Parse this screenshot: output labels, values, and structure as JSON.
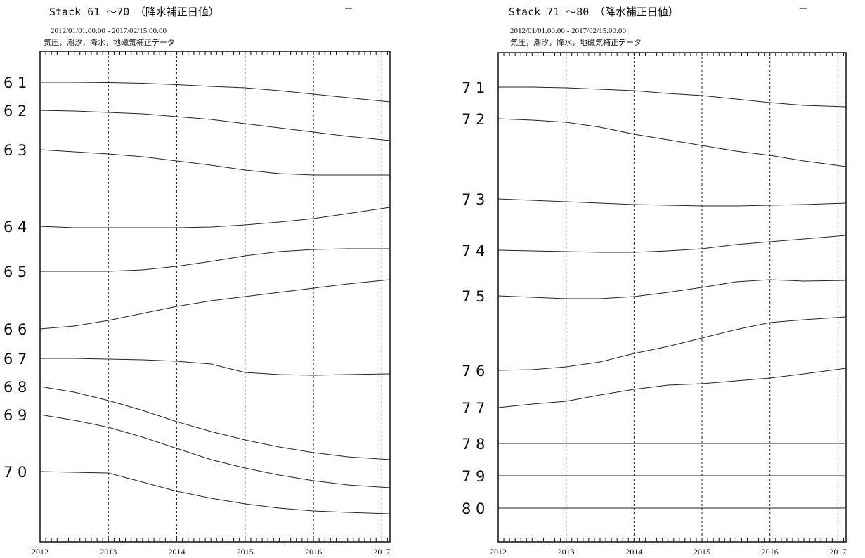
{
  "chart_data": [
    {
      "type": "line",
      "title": "Stack 61 ～70　（降水補正日値）",
      "period": "2012/01/01.00:00 - 2017/02/15.00:00",
      "note": "気圧，潮汐，降水，地磁気補正データ",
      "corner_mark": "ー",
      "x_tick_labels": [
        "2012",
        "2013",
        "2014",
        "2015",
        "2016",
        "2017"
      ],
      "x_ticks": [
        2012,
        2013,
        2014,
        2015,
        2016,
        2017
      ],
      "xlim": [
        2012.0,
        2017.12
      ],
      "grid": "dashed vertical at year boundaries",
      "series_x": [
        2012.0,
        2012.5,
        2013.0,
        2013.5,
        2014.0,
        2014.5,
        2015.0,
        2015.5,
        2016.0,
        2016.5,
        2017.12
      ],
      "series": [
        {
          "name": "6 1",
          "offset": [
            0,
            0,
            0.5,
            1.5,
            3.5,
            6,
            8,
            12,
            17,
            22,
            28
          ]
        },
        {
          "name": "6 2",
          "offset": [
            0,
            1,
            3,
            5,
            9,
            13,
            19,
            25,
            31,
            37,
            43
          ]
        },
        {
          "name": "6 3",
          "offset": [
            0,
            3,
            6,
            10,
            16,
            22,
            29,
            34,
            36,
            36,
            36
          ]
        },
        {
          "name": "6 4",
          "offset": [
            0,
            2,
            2,
            2,
            2,
            1,
            -2,
            -6,
            -11,
            -18,
            -27
          ]
        },
        {
          "name": "6 5",
          "offset": [
            0,
            0,
            0,
            -2,
            -7,
            -14,
            -22,
            -28,
            -31,
            -32,
            -32
          ]
        },
        {
          "name": "6 6",
          "offset": [
            0,
            -4,
            -12,
            -22,
            -32,
            -40,
            -46,
            -52,
            -58,
            -64,
            -70
          ]
        },
        {
          "name": "6 7",
          "offset": [
            0,
            0,
            1,
            2,
            4,
            8,
            20,
            23,
            24,
            23,
            22
          ]
        },
        {
          "name": "6 8",
          "offset": [
            0,
            8,
            20,
            34,
            50,
            64,
            76,
            86,
            94,
            100,
            104
          ]
        },
        {
          "name": "6 9",
          "offset": [
            0,
            8,
            18,
            32,
            48,
            64,
            76,
            86,
            94,
            100,
            104
          ]
        },
        {
          "name": "7 0",
          "offset": [
            0,
            1,
            2,
            15,
            28,
            38,
            46,
            52,
            56,
            58,
            60
          ]
        }
      ]
    },
    {
      "type": "line",
      "title": "Stack 71 ～80　（降水補正日値）",
      "period": "2012/01/01.00:00 - 2017/02/15.00:00",
      "note": "気圧，潮汐，降水，地磁気補正データ",
      "corner_mark": "ー",
      "x_tick_labels": [
        "2012",
        "2013",
        "2014",
        "2015",
        "2016",
        "2017"
      ],
      "x_ticks": [
        2012,
        2013,
        2014,
        2015,
        2016,
        2017
      ],
      "xlim": [
        2012.0,
        2017.12
      ],
      "grid": "dashed vertical at year boundaries",
      "series_x": [
        2012.0,
        2012.5,
        2013.0,
        2013.5,
        2014.0,
        2014.5,
        2015.0,
        2015.5,
        2016.0,
        2016.5,
        2017.12
      ],
      "series": [
        {
          "name": "7 1",
          "offset": [
            0,
            0,
            1,
            3,
            5,
            9,
            12,
            17,
            22,
            26,
            28
          ]
        },
        {
          "name": "7 2",
          "offset": [
            0,
            2,
            5,
            12,
            22,
            30,
            38,
            46,
            52,
            60,
            68
          ]
        },
        {
          "name": "7 3",
          "offset": [
            0,
            2,
            4,
            6,
            8,
            9,
            10,
            10,
            9,
            8,
            6
          ]
        },
        {
          "name": "7 4",
          "offset": [
            0,
            1,
            2,
            3,
            3,
            1,
            -2,
            -8,
            -12,
            -16,
            -21
          ]
        },
        {
          "name": "7 5",
          "offset": [
            0,
            2,
            4,
            4,
            1,
            -5,
            -12,
            -20,
            -23,
            -21,
            -22
          ]
        },
        {
          "name": "7 6",
          "offset": [
            0,
            -1,
            -5,
            -12,
            -24,
            -34,
            -46,
            -58,
            -68,
            -72,
            -76
          ]
        },
        {
          "name": "7 7",
          "offset": [
            0,
            -5,
            -9,
            -18,
            -26,
            -32,
            -34,
            -38,
            -42,
            -48,
            -56
          ]
        },
        {
          "name": "7 8",
          "offset": [
            0,
            0,
            0,
            0,
            0,
            0,
            0,
            0,
            0,
            0,
            0
          ]
        },
        {
          "name": "7 9",
          "offset": [
            0,
            0,
            0,
            0,
            0,
            0,
            0,
            0,
            0,
            0,
            0
          ]
        },
        {
          "name": "8 0",
          "offset": [
            0,
            0,
            0,
            0,
            0,
            0,
            0,
            0,
            0,
            0,
            0
          ]
        }
      ]
    }
  ]
}
